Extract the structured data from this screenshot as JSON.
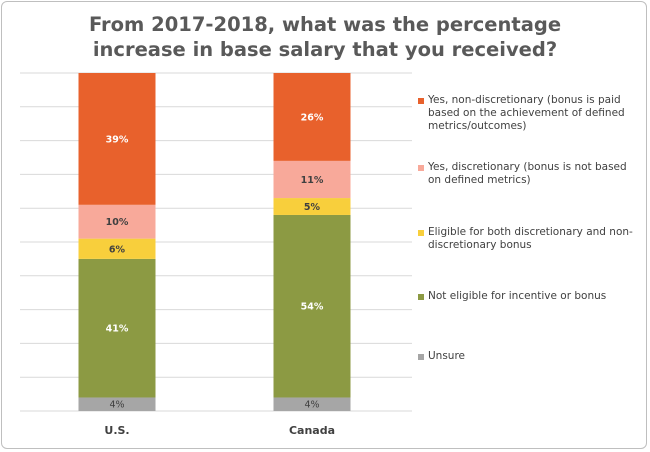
{
  "chart_data": {
    "type": "bar",
    "stacked": true,
    "title": "From 2017-2018, what was the percentage increase in base salary that you received?",
    "categories": [
      "U.S.",
      "Canada"
    ],
    "ylim": [
      0,
      100
    ],
    "grid": true,
    "legend_position": "right",
    "series": [
      {
        "name": "Unsure",
        "color": "#a6a6a6",
        "values": [
          4,
          4
        ],
        "labels": [
          "4%",
          "4%"
        ]
      },
      {
        "name": "Not eligible for incentive or bonus",
        "color": "#8c9a43",
        "values": [
          41,
          54
        ],
        "labels": [
          "41%",
          "54%"
        ]
      },
      {
        "name": "Eligible for both discretionary and non-discretionary bonus",
        "color": "#f8cf3c",
        "values": [
          6,
          5
        ],
        "labels": [
          "6%",
          "5%"
        ]
      },
      {
        "name": "Yes, discretionary (bonus is not based on defined metrics)",
        "color": "#f8a99a",
        "values": [
          10,
          11
        ],
        "labels": [
          "10%",
          "11%"
        ]
      },
      {
        "name": "Yes, non-discretionary (bonus is paid based on the achievement of defined metrics/outcomes)",
        "color": "#e8612c",
        "values": [
          39,
          26
        ],
        "labels": [
          "39%",
          "26%"
        ]
      }
    ]
  }
}
